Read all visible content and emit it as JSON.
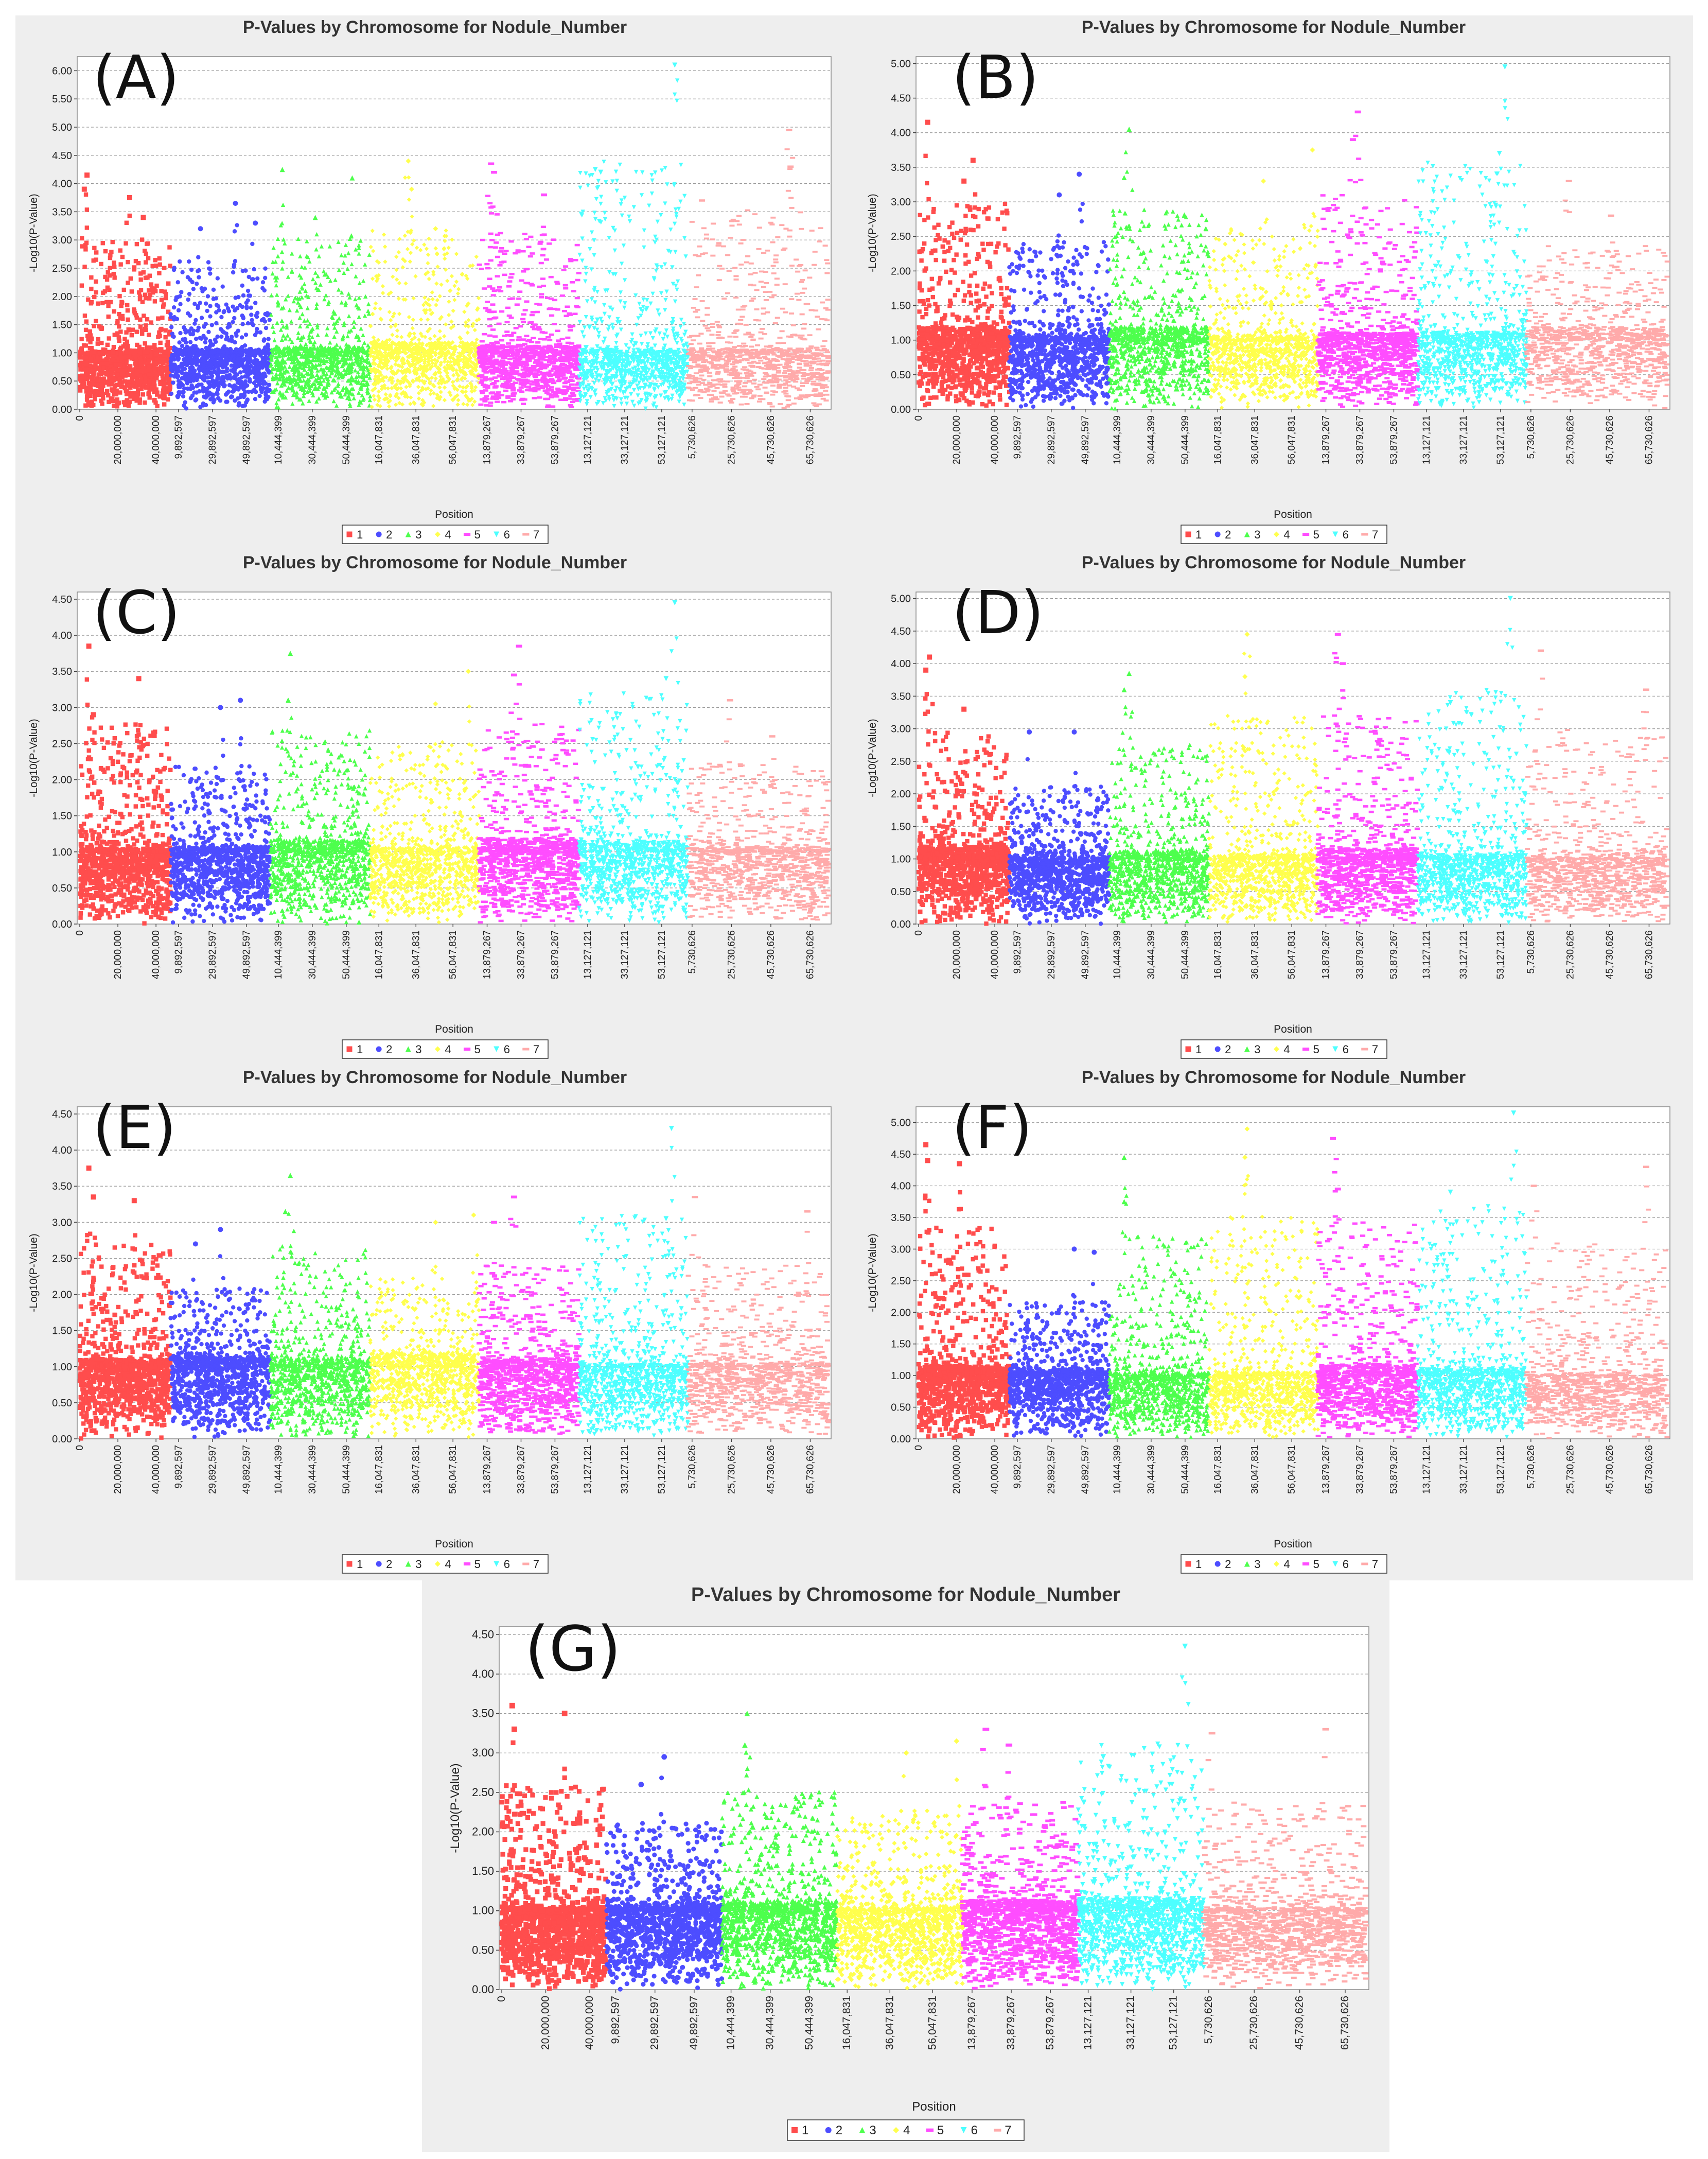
{
  "figure": {
    "title": "P-Values by Chromosome for Nodule_Number",
    "xlabel": "Position",
    "ylabel": "-Log10(P-Value)"
  },
  "colors": {
    "chr1": "#ff4d4d",
    "chr2": "#4d4dff",
    "chr3": "#4dff4d",
    "chr4": "#ffff4d",
    "chr5": "#ff4dff",
    "chr6": "#4dffff",
    "chr7": "#ffaaaa"
  },
  "legend": [
    "1",
    "2",
    "3",
    "4",
    "5",
    "6",
    "7"
  ],
  "chart_data": [
    {
      "panel_label": "(A)",
      "type": "scatter",
      "title": "P-Values by Chromosome for Nodule_Number",
      "xlabel": "Position",
      "ylabel": "-Log10(P-Value)",
      "ylim": [
        0,
        6.25
      ],
      "y_ticks": [
        "0.00",
        "0.50",
        "1.00",
        "1.50",
        "2.00",
        "2.50",
        "3.00",
        "3.50",
        "4.00",
        "4.50",
        "5.00",
        "5.50",
        "6.00"
      ],
      "x_tick_labels": [
        "0",
        "20,000,000",
        "40,000,000",
        "9,892,597",
        "29,892,597",
        "49,892,597",
        "10,444,399",
        "30,444,399",
        "50,444,399",
        "16,047,831",
        "36,047,831",
        "56,047,831",
        "13,879,267",
        "33,879,267",
        "53,879,267",
        "13,127,121",
        "33,127,121",
        "53,127,121",
        "5,730,626",
        "25,730,626",
        "45,730,626",
        "65,730,626"
      ],
      "series": [
        {
          "name": "1",
          "max": 4.15,
          "peaks": [
            [
              0.08,
              4.15
            ],
            [
              0.05,
              3.9
            ],
            [
              0.55,
              3.75
            ],
            [
              0.7,
              3.4
            ]
          ]
        },
        {
          "name": "2",
          "max": 3.65,
          "peaks": [
            [
              0.65,
              3.65
            ],
            [
              0.85,
              3.3
            ],
            [
              0.3,
              3.2
            ]
          ]
        },
        {
          "name": "3",
          "max": 4.25,
          "peaks": [
            [
              0.12,
              4.25
            ],
            [
              0.82,
              4.1
            ],
            [
              0.45,
              3.4
            ]
          ]
        },
        {
          "name": "4",
          "max": 4.4,
          "peaks": [
            [
              0.35,
              4.4
            ],
            [
              0.38,
              3.9
            ],
            [
              0.6,
              3.2
            ]
          ]
        },
        {
          "name": "5",
          "max": 4.35,
          "peaks": [
            [
              0.12,
              4.35
            ],
            [
              0.15,
              4.2
            ],
            [
              0.65,
              3.8
            ]
          ]
        },
        {
          "name": "6",
          "max": 6.1,
          "peaks": [
            [
              0.88,
              6.1
            ],
            [
              0.15,
              4.25
            ],
            [
              0.2,
              4.2
            ]
          ]
        },
        {
          "name": "7",
          "max": 4.95,
          "peaks": [
            [
              0.72,
              4.95
            ],
            [
              0.73,
              4.3
            ],
            [
              0.1,
              3.7
            ]
          ]
        }
      ]
    },
    {
      "panel_label": "(B)",
      "type": "scatter",
      "title": "P-Values by Chromosome for Nodule_Number",
      "xlabel": "Position",
      "ylabel": "-Log10(P-Value)",
      "ylim": [
        0,
        5.1
      ],
      "y_ticks": [
        "0.00",
        "0.50",
        "1.00",
        "1.50",
        "2.00",
        "2.50",
        "3.00",
        "3.50",
        "4.00",
        "4.50",
        "5.00"
      ],
      "x_tick_labels": [
        "0",
        "20,000,000",
        "40,000,000",
        "9,892,597",
        "29,892,597",
        "49,892,597",
        "10,444,399",
        "30,444,399",
        "50,444,399",
        "16,047,831",
        "36,047,831",
        "56,047,831",
        "13,879,267",
        "33,879,267",
        "53,879,267",
        "13,127,121",
        "33,127,121",
        "53,127,121",
        "5,730,626",
        "25,730,626",
        "45,730,626",
        "65,730,626"
      ],
      "series": [
        {
          "name": "1",
          "max": 4.15,
          "peaks": [
            [
              0.1,
              4.15
            ],
            [
              0.6,
              3.6
            ],
            [
              0.5,
              3.3
            ]
          ]
        },
        {
          "name": "2",
          "max": 3.4,
          "peaks": [
            [
              0.7,
              3.4
            ],
            [
              0.5,
              3.1
            ]
          ]
        },
        {
          "name": "3",
          "max": 4.05,
          "peaks": [
            [
              0.2,
              4.05
            ],
            [
              0.15,
              3.35
            ]
          ]
        },
        {
          "name": "4",
          "max": 3.75,
          "peaks": [
            [
              0.95,
              3.75
            ],
            [
              0.5,
              3.3
            ]
          ]
        },
        {
          "name": "5",
          "max": 4.3,
          "peaks": [
            [
              0.4,
              4.3
            ],
            [
              0.35,
              3.9
            ]
          ]
        },
        {
          "name": "6",
          "max": 4.95,
          "peaks": [
            [
              0.8,
              4.95
            ],
            [
              0.75,
              3.7
            ]
          ]
        },
        {
          "name": "7",
          "max": 3.3,
          "peaks": [
            [
              0.3,
              3.3
            ],
            [
              0.6,
              2.8
            ]
          ]
        }
      ]
    },
    {
      "panel_label": "(C)",
      "type": "scatter",
      "title": "P-Values by Chromosome for Nodule_Number",
      "xlabel": "Position",
      "ylabel": "-Log10(P-Value)",
      "ylim": [
        0,
        4.6
      ],
      "y_ticks": [
        "0.00",
        "0.50",
        "1.00",
        "1.50",
        "2.00",
        "2.50",
        "3.00",
        "3.50",
        "4.00",
        "4.50"
      ],
      "x_tick_labels": [
        "0",
        "20,000,000",
        "40,000,000",
        "9,892,597",
        "29,892,597",
        "49,892,597",
        "10,444,399",
        "30,444,399",
        "50,444,399",
        "16,047,831",
        "36,047,831",
        "56,047,831",
        "13,879,267",
        "33,879,267",
        "53,879,267",
        "13,127,121",
        "33,127,121",
        "53,127,121",
        "5,730,626",
        "25,730,626",
        "45,730,626",
        "65,730,626"
      ],
      "series": [
        {
          "name": "1",
          "max": 3.85,
          "peaks": [
            [
              0.1,
              3.85
            ],
            [
              0.65,
              3.4
            ],
            [
              0.15,
              2.9
            ]
          ]
        },
        {
          "name": "2",
          "max": 3.1,
          "peaks": [
            [
              0.7,
              3.1
            ],
            [
              0.5,
              3.0
            ]
          ]
        },
        {
          "name": "3",
          "max": 3.75,
          "peaks": [
            [
              0.2,
              3.75
            ],
            [
              0.18,
              3.1
            ]
          ]
        },
        {
          "name": "4",
          "max": 3.5,
          "peaks": [
            [
              0.9,
              3.5
            ],
            [
              0.6,
              3.05
            ]
          ]
        },
        {
          "name": "5",
          "max": 3.85,
          "peaks": [
            [
              0.4,
              3.85
            ],
            [
              0.35,
              3.45
            ]
          ]
        },
        {
          "name": "6",
          "max": 4.45,
          "peaks": [
            [
              0.88,
              4.45
            ],
            [
              0.8,
              3.4
            ]
          ]
        },
        {
          "name": "7",
          "max": 3.1,
          "peaks": [
            [
              0.3,
              3.1
            ],
            [
              0.6,
              2.6
            ]
          ]
        }
      ]
    },
    {
      "panel_label": "(D)",
      "type": "scatter",
      "title": "P-Values by Chromosome for Nodule_Number",
      "xlabel": "Position",
      "ylabel": "-Log10(P-Value)",
      "ylim": [
        0,
        5.1
      ],
      "y_ticks": [
        "0.00",
        "0.50",
        "1.00",
        "1.50",
        "2.00",
        "2.50",
        "3.00",
        "3.50",
        "4.00",
        "4.50",
        "5.00"
      ],
      "x_tick_labels": [
        "0",
        "20,000,000",
        "40,000,000",
        "9,892,597",
        "29,892,597",
        "49,892,597",
        "10,444,399",
        "30,444,399",
        "50,444,399",
        "16,047,831",
        "36,047,831",
        "56,047,831",
        "13,879,267",
        "33,879,267",
        "53,879,267",
        "13,127,121",
        "33,127,121",
        "53,127,121",
        "5,730,626",
        "25,730,626",
        "45,730,626",
        "65,730,626"
      ],
      "series": [
        {
          "name": "1",
          "max": 4.1,
          "peaks": [
            [
              0.12,
              4.1
            ],
            [
              0.08,
              3.9
            ],
            [
              0.5,
              3.3
            ]
          ]
        },
        {
          "name": "2",
          "max": 2.95,
          "peaks": [
            [
              0.2,
              2.95
            ],
            [
              0.65,
              2.95
            ]
          ]
        },
        {
          "name": "3",
          "max": 3.85,
          "peaks": [
            [
              0.2,
              3.85
            ],
            [
              0.15,
              3.6
            ]
          ]
        },
        {
          "name": "4",
          "max": 4.45,
          "peaks": [
            [
              0.35,
              4.45
            ],
            [
              0.33,
              3.8
            ]
          ]
        },
        {
          "name": "5",
          "max": 4.45,
          "peaks": [
            [
              0.2,
              4.45
            ],
            [
              0.25,
              4.0
            ]
          ]
        },
        {
          "name": "6",
          "max": 5.0,
          "peaks": [
            [
              0.85,
              5.0
            ],
            [
              0.3,
              3.4
            ]
          ]
        },
        {
          "name": "7",
          "max": 4.2,
          "peaks": [
            [
              0.1,
              4.2
            ],
            [
              0.85,
              3.6
            ]
          ]
        }
      ]
    },
    {
      "panel_label": "(E)",
      "type": "scatter",
      "title": "P-Values by Chromosome for Nodule_Number",
      "xlabel": "Position",
      "ylabel": "-Log10(P-Value)",
      "ylim": [
        0,
        4.6
      ],
      "y_ticks": [
        "0.00",
        "0.50",
        "1.00",
        "1.50",
        "2.00",
        "2.50",
        "3.00",
        "3.50",
        "4.00",
        "4.50"
      ],
      "x_tick_labels": [
        "0",
        "20,000,000",
        "40,000,000",
        "9,892,597",
        "29,892,597",
        "49,892,597",
        "10,444,399",
        "30,444,399",
        "50,444,399",
        "16,047,831",
        "36,047,831",
        "56,047,831",
        "13,879,267",
        "33,879,267",
        "53,879,267",
        "13,127,121",
        "33,127,121",
        "53,127,121",
        "5,730,626",
        "25,730,626",
        "45,730,626",
        "65,730,626"
      ],
      "series": [
        {
          "name": "1",
          "max": 3.75,
          "peaks": [
            [
              0.1,
              3.75
            ],
            [
              0.6,
              3.3
            ],
            [
              0.15,
              3.35
            ]
          ]
        },
        {
          "name": "2",
          "max": 2.9,
          "peaks": [
            [
              0.5,
              2.9
            ],
            [
              0.25,
              2.7
            ]
          ]
        },
        {
          "name": "3",
          "max": 3.65,
          "peaks": [
            [
              0.2,
              3.65
            ],
            [
              0.15,
              3.15
            ]
          ]
        },
        {
          "name": "4",
          "max": 3.1,
          "peaks": [
            [
              0.95,
              3.1
            ],
            [
              0.6,
              3.0
            ]
          ]
        },
        {
          "name": "5",
          "max": 3.35,
          "peaks": [
            [
              0.35,
              3.35
            ],
            [
              0.15,
              3.0
            ]
          ]
        },
        {
          "name": "6",
          "max": 4.3,
          "peaks": [
            [
              0.85,
              4.3
            ],
            [
              0.8,
              3.05
            ]
          ]
        },
        {
          "name": "7",
          "max": 3.35,
          "peaks": [
            [
              0.05,
              3.35
            ],
            [
              0.85,
              3.15
            ]
          ]
        }
      ]
    },
    {
      "panel_label": "(F)",
      "type": "scatter",
      "title": "P-Values by Chromosome for Nodule_Number",
      "xlabel": "Position",
      "ylabel": "-Log10(P-Value)",
      "ylim": [
        0,
        5.25
      ],
      "y_ticks": [
        "0.00",
        "0.50",
        "1.00",
        "1.50",
        "2.00",
        "2.50",
        "3.00",
        "3.50",
        "4.00",
        "4.50",
        "5.00"
      ],
      "x_tick_labels": [
        "0",
        "20,000,000",
        "40,000,000",
        "9,892,597",
        "29,892,597",
        "49,892,597",
        "10,444,399",
        "30,444,399",
        "50,444,399",
        "16,047,831",
        "36,047,831",
        "56,047,831",
        "13,879,267",
        "33,879,267",
        "53,879,267",
        "13,127,121",
        "33,127,121",
        "53,127,121",
        "5,730,626",
        "25,730,626",
        "45,730,626",
        "65,730,626"
      ],
      "series": [
        {
          "name": "1",
          "max": 4.65,
          "peaks": [
            [
              0.08,
              4.65
            ],
            [
              0.45,
              4.35
            ],
            [
              0.1,
              4.4
            ]
          ]
        },
        {
          "name": "2",
          "max": 3.0,
          "peaks": [
            [
              0.65,
              3.0
            ],
            [
              0.85,
              2.95
            ]
          ]
        },
        {
          "name": "3",
          "max": 4.45,
          "peaks": [
            [
              0.15,
              4.45
            ],
            [
              0.15,
              3.75
            ]
          ]
        },
        {
          "name": "4",
          "max": 4.9,
          "peaks": [
            [
              0.35,
              4.9
            ],
            [
              0.33,
              4.45
            ]
          ]
        },
        {
          "name": "5",
          "max": 4.75,
          "peaks": [
            [
              0.15,
              4.75
            ],
            [
              0.2,
              3.95
            ]
          ]
        },
        {
          "name": "6",
          "max": 5.15,
          "peaks": [
            [
              0.88,
              5.15
            ],
            [
              0.3,
              3.9
            ]
          ]
        },
        {
          "name": "7",
          "max": 4.3,
          "peaks": [
            [
              0.85,
              4.3
            ],
            [
              0.05,
              4.0
            ]
          ]
        }
      ]
    },
    {
      "panel_label": "(G)",
      "type": "scatter",
      "title": "P-Values by Chromosome for Nodule_Number",
      "xlabel": "Position",
      "ylabel": "-Log10(P-Value)",
      "ylim": [
        0,
        4.6
      ],
      "y_ticks": [
        "0.00",
        "0.50",
        "1.00",
        "1.50",
        "2.00",
        "2.50",
        "3.00",
        "3.50",
        "4.00",
        "4.50"
      ],
      "x_tick_labels": [
        "0",
        "20,000,000",
        "40,000,000",
        "9,892,597",
        "29,892,597",
        "49,892,597",
        "10,444,399",
        "30,444,399",
        "50,444,399",
        "16,047,831",
        "36,047,831",
        "56,047,831",
        "13,879,267",
        "33,879,267",
        "53,879,267",
        "13,127,121",
        "33,127,121",
        "53,127,121",
        "5,730,626",
        "25,730,626",
        "45,730,626",
        "65,730,626"
      ],
      "series": [
        {
          "name": "1",
          "max": 3.6,
          "peaks": [
            [
              0.1,
              3.6
            ],
            [
              0.6,
              3.5
            ],
            [
              0.12,
              3.3
            ]
          ]
        },
        {
          "name": "2",
          "max": 2.95,
          "peaks": [
            [
              0.5,
              2.95
            ],
            [
              0.3,
              2.6
            ]
          ]
        },
        {
          "name": "3",
          "max": 3.5,
          "peaks": [
            [
              0.22,
              3.5
            ],
            [
              0.2,
              3.1
            ]
          ]
        },
        {
          "name": "4",
          "max": 3.15,
          "peaks": [
            [
              0.95,
              3.15
            ],
            [
              0.55,
              3.0
            ]
          ]
        },
        {
          "name": "5",
          "max": 3.3,
          "peaks": [
            [
              0.2,
              3.3
            ],
            [
              0.4,
              3.1
            ]
          ]
        },
        {
          "name": "6",
          "max": 4.35,
          "peaks": [
            [
              0.85,
              4.35
            ],
            [
              0.2,
              2.95
            ]
          ]
        },
        {
          "name": "7",
          "max": 3.3,
          "peaks": [
            [
              0.75,
              3.3
            ],
            [
              0.05,
              3.25
            ]
          ]
        }
      ]
    }
  ]
}
